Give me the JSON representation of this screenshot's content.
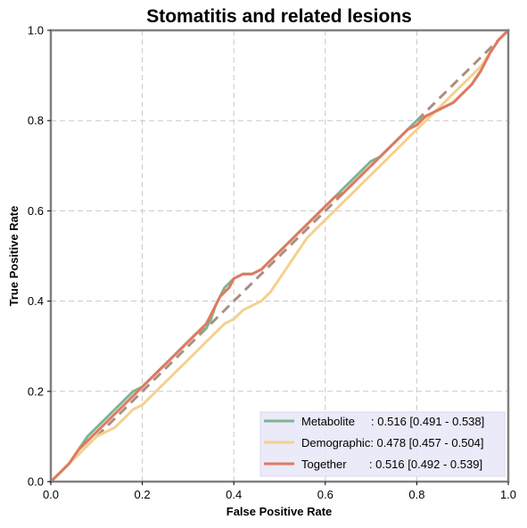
{
  "chart_data": {
    "type": "line",
    "title": "Stomatitis and related lesions",
    "xlabel": "False Positive Rate",
    "ylabel": "True Positive Rate",
    "xlim": [
      0,
      1
    ],
    "ylim": [
      0,
      1
    ],
    "xticks": [
      "0.0",
      "0.2",
      "0.4",
      "0.6",
      "0.8",
      "1.0"
    ],
    "yticks": [
      "0.0",
      "0.2",
      "0.4",
      "0.6",
      "0.8",
      "1.0"
    ],
    "grid": true,
    "legend_position": "bottom-right",
    "reference_line": {
      "x": [
        0,
        1
      ],
      "y": [
        0,
        1
      ],
      "color": "#a98f83",
      "style": "dashed"
    },
    "series": [
      {
        "name": "Metabolite     : 0.516 [0.491 - 0.538]",
        "color": "#7fb394",
        "x": [
          0,
          0.02,
          0.04,
          0.06,
          0.08,
          0.1,
          0.12,
          0.14,
          0.16,
          0.18,
          0.2,
          0.22,
          0.24,
          0.26,
          0.28,
          0.3,
          0.32,
          0.34,
          0.35,
          0.36,
          0.37,
          0.38,
          0.39,
          0.4,
          0.42,
          0.44,
          0.46,
          0.48,
          0.5,
          0.52,
          0.54,
          0.56,
          0.58,
          0.6,
          0.62,
          0.64,
          0.66,
          0.68,
          0.7,
          0.72,
          0.74,
          0.76,
          0.78,
          0.8,
          0.82,
          0.84,
          0.86,
          0.88,
          0.9,
          0.92,
          0.94,
          0.96,
          0.98,
          1.0
        ],
        "y": [
          0,
          0.02,
          0.04,
          0.07,
          0.1,
          0.12,
          0.14,
          0.16,
          0.18,
          0.2,
          0.21,
          0.23,
          0.25,
          0.27,
          0.29,
          0.31,
          0.33,
          0.34,
          0.36,
          0.39,
          0.41,
          0.43,
          0.44,
          0.45,
          0.46,
          0.46,
          0.47,
          0.49,
          0.51,
          0.53,
          0.55,
          0.57,
          0.59,
          0.61,
          0.63,
          0.65,
          0.67,
          0.69,
          0.71,
          0.72,
          0.74,
          0.76,
          0.78,
          0.8,
          0.81,
          0.82,
          0.83,
          0.84,
          0.86,
          0.88,
          0.91,
          0.95,
          0.98,
          1.0
        ]
      },
      {
        "name": "Demographic: 0.478 [0.457 - 0.504]",
        "color": "#f5d08f",
        "x": [
          0,
          0.02,
          0.04,
          0.06,
          0.08,
          0.1,
          0.12,
          0.14,
          0.16,
          0.18,
          0.2,
          0.22,
          0.24,
          0.26,
          0.28,
          0.3,
          0.32,
          0.34,
          0.36,
          0.38,
          0.4,
          0.42,
          0.44,
          0.46,
          0.48,
          0.5,
          0.52,
          0.54,
          0.56,
          0.58,
          0.6,
          0.62,
          0.64,
          0.66,
          0.68,
          0.7,
          0.72,
          0.74,
          0.76,
          0.78,
          0.8,
          0.82,
          0.84,
          0.86,
          0.88,
          0.9,
          0.92,
          0.94,
          0.96,
          0.98,
          1.0
        ],
        "y": [
          0,
          0.02,
          0.04,
          0.06,
          0.08,
          0.1,
          0.11,
          0.12,
          0.14,
          0.16,
          0.17,
          0.19,
          0.21,
          0.23,
          0.25,
          0.27,
          0.29,
          0.31,
          0.33,
          0.35,
          0.36,
          0.38,
          0.39,
          0.4,
          0.42,
          0.45,
          0.48,
          0.51,
          0.54,
          0.56,
          0.58,
          0.6,
          0.62,
          0.64,
          0.66,
          0.68,
          0.7,
          0.72,
          0.74,
          0.76,
          0.78,
          0.8,
          0.82,
          0.84,
          0.86,
          0.88,
          0.9,
          0.92,
          0.95,
          0.98,
          1.0
        ]
      },
      {
        "name": "Together       : 0.516 [0.492 - 0.539]",
        "color": "#e07a5f",
        "x": [
          0,
          0.02,
          0.04,
          0.06,
          0.08,
          0.1,
          0.12,
          0.14,
          0.16,
          0.18,
          0.2,
          0.22,
          0.24,
          0.26,
          0.28,
          0.3,
          0.32,
          0.34,
          0.35,
          0.36,
          0.37,
          0.38,
          0.39,
          0.4,
          0.42,
          0.44,
          0.46,
          0.48,
          0.5,
          0.52,
          0.54,
          0.56,
          0.58,
          0.6,
          0.62,
          0.64,
          0.66,
          0.68,
          0.7,
          0.72,
          0.74,
          0.76,
          0.78,
          0.8,
          0.82,
          0.84,
          0.86,
          0.88,
          0.9,
          0.92,
          0.94,
          0.96,
          0.98,
          1.0
        ],
        "y": [
          0,
          0.02,
          0.04,
          0.07,
          0.09,
          0.11,
          0.13,
          0.15,
          0.17,
          0.19,
          0.21,
          0.23,
          0.25,
          0.27,
          0.29,
          0.31,
          0.33,
          0.35,
          0.37,
          0.39,
          0.41,
          0.42,
          0.43,
          0.45,
          0.46,
          0.46,
          0.47,
          0.49,
          0.51,
          0.53,
          0.55,
          0.57,
          0.59,
          0.61,
          0.63,
          0.64,
          0.66,
          0.68,
          0.7,
          0.72,
          0.74,
          0.76,
          0.78,
          0.79,
          0.81,
          0.82,
          0.83,
          0.84,
          0.86,
          0.88,
          0.91,
          0.95,
          0.98,
          1.0
        ]
      }
    ]
  }
}
